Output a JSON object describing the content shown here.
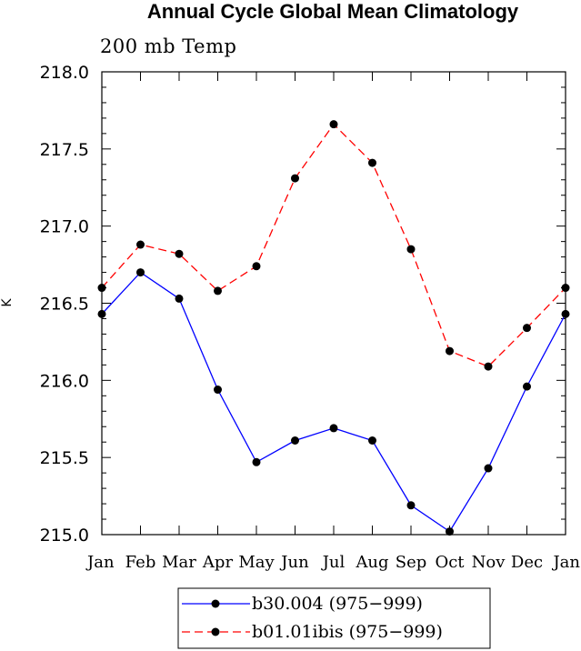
{
  "chart_data": {
    "type": "line",
    "title": "Annual Cycle Global Mean Climatology",
    "subtitle": "200 mb Temp",
    "xlabel": "",
    "ylabel": "K",
    "categories": [
      "Jan",
      "Feb",
      "Mar",
      "Apr",
      "May",
      "Jun",
      "Jul",
      "Aug",
      "Sep",
      "Oct",
      "Nov",
      "Dec",
      "Jan"
    ],
    "ylim": [
      215.0,
      218.0
    ],
    "yticks": [
      "215.0",
      "215.5",
      "216.0",
      "216.5",
      "217.0",
      "217.5",
      "218.0"
    ],
    "grid": false,
    "legend_position": "bottom-center",
    "series": [
      {
        "name": "b30.004 (975−999)",
        "color": "#0000ff",
        "line_style": "solid",
        "marker": "filled-circle",
        "values": [
          216.43,
          216.7,
          216.53,
          215.94,
          215.47,
          215.61,
          215.69,
          215.61,
          215.19,
          215.02,
          215.43,
          215.96,
          216.43
        ]
      },
      {
        "name": "b01.01ibis (975−999)",
        "color": "#ff0000",
        "line_style": "dashed",
        "marker": "filled-circle",
        "values": [
          216.6,
          216.88,
          216.82,
          216.58,
          216.74,
          217.31,
          217.66,
          217.41,
          216.85,
          216.19,
          216.09,
          216.34,
          216.6
        ]
      }
    ]
  }
}
